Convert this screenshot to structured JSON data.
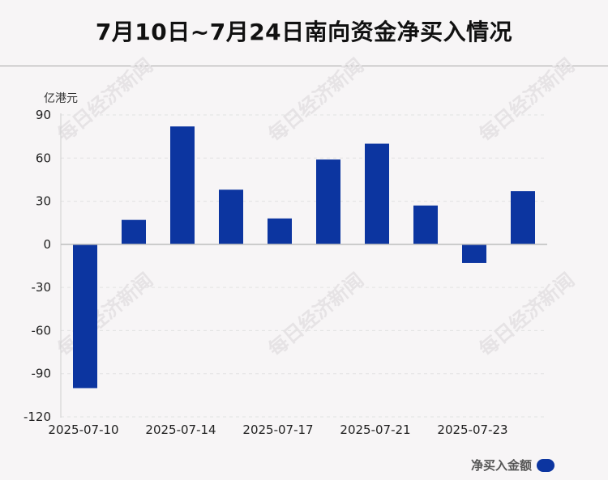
{
  "header": {
    "title": "7月10日~7月24日南向资金净买入情况"
  },
  "watermark": "每日经济新闻",
  "chart_data": {
    "type": "bar",
    "title": "7月10日~7月24日南向资金净买入情况",
    "ylabel": "亿港元",
    "ylim": [
      -120,
      90
    ],
    "yticks": [
      90,
      60,
      30,
      0,
      -30,
      -60,
      -90,
      -120
    ],
    "x_tick_labels": [
      "2025-07-10",
      "2025-07-14",
      "2025-07-17",
      "2025-07-21",
      "2025-07-23"
    ],
    "grid": true,
    "series": [
      {
        "name": "净买入金额",
        "color": "#0c35a0",
        "values": [
          -100,
          17,
          82,
          38,
          18,
          59,
          70,
          27,
          -13,
          37
        ]
      }
    ],
    "legend": {
      "position": "bottom-right",
      "label": "净买入金额"
    }
  }
}
